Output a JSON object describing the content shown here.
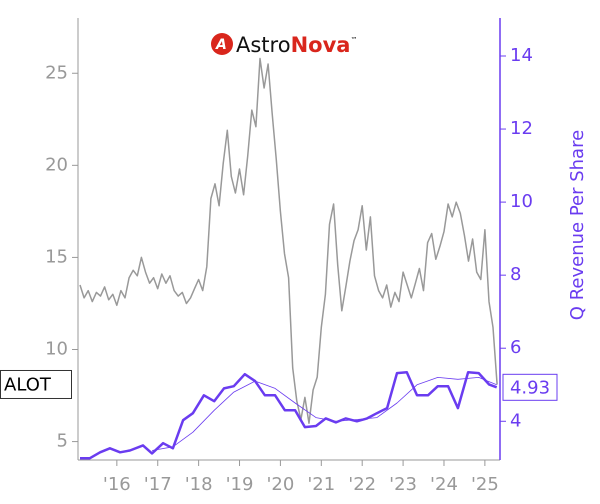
{
  "chart_data": {
    "type": "line",
    "logo": {
      "part1": "Astro",
      "part2": "Nova",
      "mark": "™"
    },
    "ticker": "ALOT",
    "y2label": "Q Revenue Per Share",
    "xlim": [
      2015.05,
      2025.37
    ],
    "xticks": [
      {
        "value": 2016,
        "label": "'16"
      },
      {
        "value": 2017,
        "label": "'17"
      },
      {
        "value": 2018,
        "label": "'18"
      },
      {
        "value": 2019,
        "label": "'19"
      },
      {
        "value": 2020,
        "label": "'20"
      },
      {
        "value": 2021,
        "label": "'21"
      },
      {
        "value": 2022,
        "label": "'22"
      },
      {
        "value": 2023,
        "label": "'23"
      },
      {
        "value": 2024,
        "label": "'24"
      },
      {
        "value": 2025,
        "label": "'25"
      }
    ],
    "ylim": [
      4,
      28
    ],
    "yticks": [
      5,
      10,
      15,
      20,
      25
    ],
    "y2lim": [
      2.94,
      15.04
    ],
    "y2ticks": [
      4,
      6,
      8,
      10,
      12,
      14
    ],
    "axis_color": "#999999",
    "y2_color": "#6a3cf0",
    "series": [
      {
        "color": "#999999",
        "width": 1.5,
        "axis": "y",
        "x": [
          2015.1,
          2015.2,
          2015.3,
          2015.4,
          2015.5,
          2015.6,
          2015.7,
          2015.8,
          2015.9,
          2016.0,
          2016.1,
          2016.2,
          2016.3,
          2016.4,
          2016.5,
          2016.6,
          2016.7,
          2016.8,
          2016.9,
          2017.0,
          2017.1,
          2017.2,
          2017.3,
          2017.4,
          2017.5,
          2017.6,
          2017.7,
          2017.8,
          2017.9,
          2018.0,
          2018.1,
          2018.2,
          2018.3,
          2018.4,
          2018.5,
          2018.6,
          2018.7,
          2018.8,
          2018.9,
          2019.0,
          2019.1,
          2019.2,
          2019.3,
          2019.4,
          2019.5,
          2019.6,
          2019.7,
          2019.8,
          2019.9,
          2020.0,
          2020.1,
          2020.2,
          2020.3,
          2020.4,
          2020.5,
          2020.6,
          2020.7,
          2020.8,
          2020.9,
          2021.0,
          2021.1,
          2021.2,
          2021.3,
          2021.4,
          2021.5,
          2021.6,
          2021.7,
          2021.8,
          2021.9,
          2022.0,
          2022.1,
          2022.2,
          2022.3,
          2022.4,
          2022.5,
          2022.6,
          2022.7,
          2022.8,
          2022.9,
          2023.0,
          2023.1,
          2023.2,
          2023.3,
          2023.4,
          2023.5,
          2023.6,
          2023.7,
          2023.8,
          2023.9,
          2024.0,
          2024.1,
          2024.2,
          2024.3,
          2024.4,
          2024.5,
          2024.6,
          2024.7,
          2024.8,
          2024.9,
          2025.0,
          2025.1,
          2025.2,
          2025.3
        ],
        "values": [
          13.5,
          12.8,
          13.2,
          12.6,
          13.1,
          12.9,
          13.4,
          12.7,
          13.0,
          12.4,
          13.2,
          12.8,
          13.9,
          14.3,
          14.0,
          15.0,
          14.2,
          13.6,
          13.9,
          13.3,
          14.1,
          13.6,
          14.0,
          13.2,
          12.9,
          13.1,
          12.5,
          12.8,
          13.3,
          13.8,
          13.2,
          14.5,
          18.2,
          19.0,
          17.8,
          20.1,
          21.9,
          19.4,
          18.5,
          19.8,
          18.4,
          20.5,
          23.0,
          22.1,
          25.8,
          24.2,
          25.5,
          22.8,
          20.3,
          17.5,
          15.2,
          13.9,
          9.0,
          7.2,
          6.2,
          7.4,
          6.0,
          7.8,
          8.5,
          11.2,
          13.0,
          16.8,
          17.9,
          14.6,
          12.1,
          13.4,
          14.8,
          15.9,
          16.5,
          17.8,
          15.4,
          17.2,
          14.0,
          13.2,
          12.8,
          13.5,
          12.3,
          13.1,
          12.6,
          14.2,
          13.5,
          12.8,
          13.6,
          14.4,
          13.2,
          15.8,
          16.3,
          14.9,
          15.6,
          16.4,
          17.9,
          17.2,
          18.0,
          17.4,
          16.2,
          14.8,
          16.0,
          14.2,
          13.8,
          16.5,
          12.6,
          11.2,
          8.1
        ]
      },
      {
        "color": "#6a3cf0",
        "width": 2.5,
        "axis": "y2",
        "x": [
          2015.1,
          2015.34,
          2015.59,
          2015.83,
          2016.08,
          2016.32,
          2016.64,
          2016.86,
          2017.13,
          2017.37,
          2017.62,
          2017.86,
          2018.13,
          2018.38,
          2018.62,
          2018.86,
          2019.13,
          2019.38,
          2019.62,
          2019.87,
          2020.11,
          2020.36,
          2020.6,
          2020.87,
          2021.11,
          2021.36,
          2021.6,
          2021.87,
          2022.12,
          2022.36,
          2022.61,
          2022.85,
          2023.09,
          2023.34,
          2023.61,
          2023.85,
          2024.1,
          2024.34,
          2024.59,
          2024.85,
          2025.1,
          2025.29
        ],
        "values": [
          2.99,
          2.99,
          3.15,
          3.26,
          3.15,
          3.2,
          3.34,
          3.12,
          3.4,
          3.26,
          4.03,
          4.22,
          4.71,
          4.55,
          4.9,
          4.96,
          5.29,
          5.1,
          4.71,
          4.71,
          4.3,
          4.3,
          3.84,
          3.87,
          4.08,
          3.97,
          4.08,
          4.0,
          4.08,
          4.22,
          4.36,
          5.32,
          5.34,
          4.71,
          4.71,
          4.96,
          4.96,
          4.36,
          5.34,
          5.32,
          5.01,
          4.93
        ]
      },
      {
        "color": "#6a3cf0",
        "width": 0.8,
        "axis": "y2",
        "x": [
          2016.86,
          2017.37,
          2017.86,
          2018.38,
          2018.86,
          2019.38,
          2019.87,
          2020.36,
          2020.87,
          2021.36,
          2021.87,
          2022.36,
          2022.85,
          2023.34,
          2023.85,
          2024.34,
          2024.85,
          2025.29
        ],
        "values": [
          3.2,
          3.3,
          3.7,
          4.3,
          4.8,
          5.1,
          4.9,
          4.5,
          4.1,
          4.0,
          4.05,
          4.1,
          4.5,
          5.0,
          5.2,
          5.15,
          5.2,
          5.0
        ]
      }
    ]
  }
}
